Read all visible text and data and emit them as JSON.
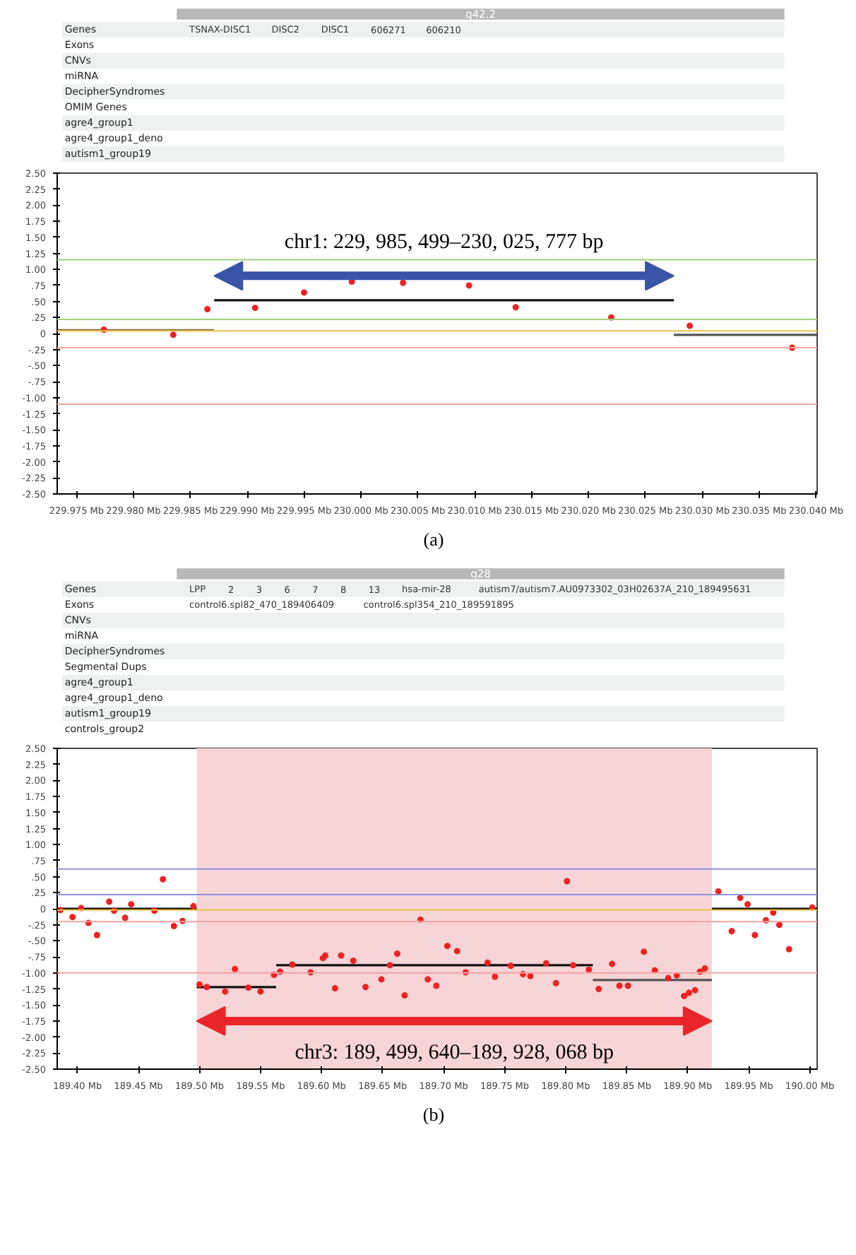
{
  "chart_data": [
    {
      "type": "other",
      "categories": [
        "Genes",
        "Exons",
        "CNVs",
        "miRNA",
        "DecipherSyndromes",
        "OMIM Genes",
        "agre4_group1",
        "agre4_group1_deno",
        "autism1_group19"
      ],
      "annotations": [
        "q42.2",
        "TSNAX-DISC1",
        "DISC2",
        "DISC1",
        "606271",
        "606210"
      ]
    },
    {
      "type": "scatter",
      "subtitle": "(a)",
      "marker": "circle",
      "xlim": [
        229.9733,
        230.0401
      ],
      "ylim": [
        -2.5,
        2.5
      ],
      "xticks": [
        {
          "value": 229.975,
          "label": "229.975 Mb"
        },
        {
          "value": 229.98,
          "label": "229.980 Mb"
        },
        {
          "value": 229.985,
          "label": "229.985 Mb"
        },
        {
          "value": 229.99,
          "label": "229.990 Mb"
        },
        {
          "value": 229.995,
          "label": "229.995 Mb"
        },
        {
          "value": 230.0,
          "label": "230.000 Mb"
        },
        {
          "value": 230.005,
          "label": "230.005 Mb"
        },
        {
          "value": 230.01,
          "label": "230.010 Mb"
        },
        {
          "value": 230.015,
          "label": "230.015 Mb"
        },
        {
          "value": 230.02,
          "label": "230.020 Mb"
        },
        {
          "value": 230.025,
          "label": "230.025 Mb"
        },
        {
          "value": 230.03,
          "label": "230.030 Mb"
        },
        {
          "value": 230.035,
          "label": "230.035 Mb"
        },
        {
          "value": 230.04,
          "label": "230.040 Mb"
        }
      ],
      "yticks": [
        {
          "value": 2.5,
          "label": "2.50"
        },
        {
          "value": 2.25,
          "label": "2.25"
        },
        {
          "value": 2.0,
          "label": "2.00"
        },
        {
          "value": 1.75,
          "label": "1.75"
        },
        {
          "value": 1.5,
          "label": "1.50"
        },
        {
          "value": 1.25,
          "label": "1.25"
        },
        {
          "value": 1.0,
          "label": "1.00"
        },
        {
          "value": 0.75,
          "label": ".75"
        },
        {
          "value": 0.5,
          "label": ".50"
        },
        {
          "value": 0.25,
          "label": ".25"
        },
        0,
        {
          "value": -0.25,
          "label": "-.25"
        },
        {
          "value": -0.5,
          "label": "-.50"
        },
        {
          "value": -0.75,
          "label": "-.75"
        },
        {
          "value": -1.0,
          "label": "-1.00"
        },
        {
          "value": -1.25,
          "label": "-1.25"
        },
        {
          "value": -1.5,
          "label": "-1.50"
        },
        {
          "value": -1.75,
          "label": "-1.75"
        },
        {
          "value": -2.0,
          "label": "-2.00"
        },
        {
          "value": -2.25,
          "label": "-2.25"
        },
        {
          "value": -2.5,
          "label": "-2.50"
        }
      ],
      "annotations": [
        "chr1: 229, 985, 499–230, 025, 777 bp"
      ],
      "ref_lines": [
        {
          "axis": "y",
          "value": 1.15,
          "color": "#9ed27a"
        },
        {
          "axis": "y",
          "value": 0.22,
          "color": "#9ed27a"
        },
        {
          "axis": "y",
          "value": 0.04,
          "color": "#f2c04a"
        },
        {
          "axis": "y",
          "value": -0.22,
          "color": "#f3a3a3"
        },
        {
          "axis": "y",
          "value": -1.1,
          "color": "#f3a3a3"
        }
      ],
      "series": [
        {
          "type": "line",
          "marker": "none",
          "color": "#7a6a3a",
          "x": [
            229.9733,
            229.9871
          ],
          "values": [
            0.05,
            0.05
          ]
        },
        {
          "type": "line",
          "marker": "none",
          "color": "#111111",
          "x": [
            229.9871,
            230.0275
          ],
          "values": [
            0.52,
            0.52
          ]
        },
        {
          "type": "line",
          "marker": "none",
          "color": "#555555",
          "x": [
            230.0275,
            230.0401
          ],
          "values": [
            -0.02,
            -0.02
          ]
        },
        {
          "type": "scatter",
          "color": "#ee2222",
          "x": [
            229.9774,
            229.9835,
            229.9865,
            229.9907,
            229.995,
            229.9992,
            230.0037,
            230.0095,
            230.0136,
            230.022,
            230.0289,
            230.0379
          ],
          "values": [
            0.06,
            -0.02,
            0.38,
            0.4,
            0.64,
            0.81,
            0.79,
            0.75,
            0.41,
            0.25,
            0.12,
            -0.22
          ]
        }
      ]
    },
    {
      "type": "other",
      "categories": [
        "Genes",
        "Exons",
        "CNVs",
        "miRNA",
        "DecipherSyndromes",
        "Segmental Dups",
        "agre4_group1",
        "agre4_group1_deno",
        "autism1_group19",
        "controls_group2"
      ],
      "annotations": [
        "q28",
        "LPP",
        "2",
        "3",
        "6",
        "7",
        "8",
        "13",
        "hsa-mir-28",
        "autism7/autism7.AU0973302_03H02637A_210_189495631",
        "control6.spl82_470_189406409",
        "control6.spl354_210_189591895"
      ]
    },
    {
      "type": "scatter",
      "subtitle": "(b)",
      "marker": "circle",
      "xlim": [
        189.3834,
        190.006
      ],
      "ylim": [
        -2.5,
        2.5
      ],
      "xticks": [
        {
          "value": 189.4,
          "label": "189.40 Mb"
        },
        {
          "value": 189.45,
          "label": "189.45 Mb"
        },
        {
          "value": 189.5,
          "label": "189.50 Mb"
        },
        {
          "value": 189.55,
          "label": "189.55 Mb"
        },
        {
          "value": 189.6,
          "label": "189.60 Mb"
        },
        {
          "value": 189.65,
          "label": "189.65 Mb"
        },
        {
          "value": 189.7,
          "label": "189.70 Mb"
        },
        {
          "value": 189.75,
          "label": "189.75 Mb"
        },
        {
          "value": 189.8,
          "label": "189.80 Mb"
        },
        {
          "value": 189.85,
          "label": "189.85 Mb"
        },
        {
          "value": 189.9,
          "label": "189.90 Mb"
        },
        {
          "value": 189.95,
          "label": "189.95 Mb"
        },
        {
          "value": 190.0,
          "label": "190.00 Mb"
        }
      ],
      "yticks": [
        {
          "value": 2.5,
          "label": "2.50"
        },
        {
          "value": 2.25,
          "label": "2.25"
        },
        {
          "value": 2.0,
          "label": "2.00"
        },
        {
          "value": 1.75,
          "label": "1.75"
        },
        {
          "value": 1.5,
          "label": "1.50"
        },
        {
          "value": 1.25,
          "label": "1.25"
        },
        {
          "value": 1.0,
          "label": "1.00"
        },
        {
          "value": 0.75,
          "label": ".75"
        },
        {
          "value": 0.5,
          "label": ".50"
        },
        {
          "value": 0.25,
          "label": ".25"
        },
        0,
        {
          "value": -0.25,
          "label": "-.25"
        },
        {
          "value": -0.5,
          "label": "-.50"
        },
        {
          "value": -0.75,
          "label": "-.75"
        },
        {
          "value": -1.0,
          "label": "-1.00"
        },
        {
          "value": -1.25,
          "label": "-1.25"
        },
        {
          "value": -1.5,
          "label": "-1.50"
        },
        {
          "value": -1.75,
          "label": "-1.75"
        },
        {
          "value": -2.0,
          "label": "-2.00"
        },
        {
          "value": -2.25,
          "label": "-2.25"
        },
        {
          "value": -2.5,
          "label": "-2.50"
        }
      ],
      "annotations": [
        "chr3: 189, 499, 640–189, 928, 068 bp"
      ],
      "bands": [
        {
          "axis": "x",
          "from": 189.4977,
          "to": 189.9197,
          "color": "#f7d4d6"
        }
      ],
      "ref_lines": [
        {
          "axis": "y",
          "value": 0.62,
          "color": "#8f8fdc"
        },
        {
          "axis": "y",
          "value": 0.22,
          "color": "#8f8fdc"
        },
        {
          "axis": "y",
          "value": -0.02,
          "color": "#f2c04a"
        },
        {
          "axis": "y",
          "value": -0.2,
          "color": "#f3a3a3"
        },
        {
          "axis": "y",
          "value": -1.0,
          "color": "#f3a3a3"
        }
      ],
      "series": [
        {
          "type": "line",
          "marker": "none",
          "color": "#111111",
          "x": [
            189.3834,
            189.4977
          ],
          "values": [
            0,
            0
          ]
        },
        {
          "type": "line",
          "marker": "none",
          "color": "#111111",
          "x": [
            189.4977,
            189.5628
          ],
          "values": [
            -1.22,
            -1.22
          ]
        },
        {
          "type": "line",
          "marker": "none",
          "color": "#111111",
          "x": [
            189.5628,
            189.8222
          ],
          "values": [
            -0.88,
            -0.88
          ]
        },
        {
          "type": "line",
          "marker": "none",
          "color": "#555555",
          "x": [
            189.8222,
            189.9197
          ],
          "values": [
            -1.11,
            -1.11
          ]
        },
        {
          "type": "line",
          "marker": "none",
          "color": "#111111",
          "x": [
            189.9197,
            190.006
          ],
          "values": [
            0,
            0
          ]
        },
        {
          "type": "scatter",
          "color": "#ee2222",
          "x": [
            189.386,
            189.396,
            189.403,
            189.409,
            189.416,
            189.426,
            189.43,
            189.439,
            189.444,
            189.463,
            189.47,
            189.479,
            189.486,
            189.495,
            189.5,
            189.506,
            189.521,
            189.529,
            189.54,
            189.55,
            189.561,
            189.566,
            189.576,
            189.591,
            189.601,
            189.603,
            189.611,
            189.616,
            189.626,
            189.636,
            189.649,
            189.656,
            189.662,
            189.668,
            189.681,
            189.687,
            189.694,
            189.703,
            189.711,
            189.718,
            189.736,
            189.742,
            189.755,
            189.765,
            189.771,
            189.784,
            189.792,
            189.801,
            189.806,
            189.819,
            189.827,
            189.838,
            189.844,
            189.851,
            189.864,
            189.873,
            189.884,
            189.891,
            189.897,
            189.901,
            189.906,
            189.91,
            189.914,
            189.925,
            189.936,
            189.943,
            189.949,
            189.955,
            189.964,
            189.97,
            189.975,
            189.983,
            190.002
          ],
          "values": [
            -0.02,
            -0.13,
            0.01,
            -0.22,
            -0.41,
            0.11,
            -0.03,
            -0.14,
            0.07,
            -0.03,
            0.46,
            -0.27,
            -0.19,
            0.04,
            -1.18,
            -1.22,
            -1.29,
            -0.94,
            -1.23,
            -1.29,
            -1.03,
            -0.98,
            -0.87,
            -0.99,
            -0.77,
            -0.73,
            -1.24,
            -0.73,
            -0.81,
            -1.22,
            -1.1,
            -0.88,
            -0.7,
            -1.35,
            -0.17,
            -1.1,
            -1.2,
            -0.58,
            -0.66,
            -0.99,
            -0.84,
            -1.06,
            -0.89,
            -1.02,
            -1.05,
            -0.85,
            -1.16,
            0.43,
            -0.88,
            -0.95,
            -1.25,
            -0.86,
            -1.2,
            -1.2,
            -0.67,
            -0.96,
            -1.08,
            -1.04,
            -1.36,
            -1.31,
            -1.27,
            -0.98,
            -0.93,
            0.27,
            -0.35,
            0.17,
            0.07,
            -0.41,
            -0.18,
            -0.06,
            -0.25,
            -0.63,
            0.02
          ]
        }
      ]
    }
  ]
}
